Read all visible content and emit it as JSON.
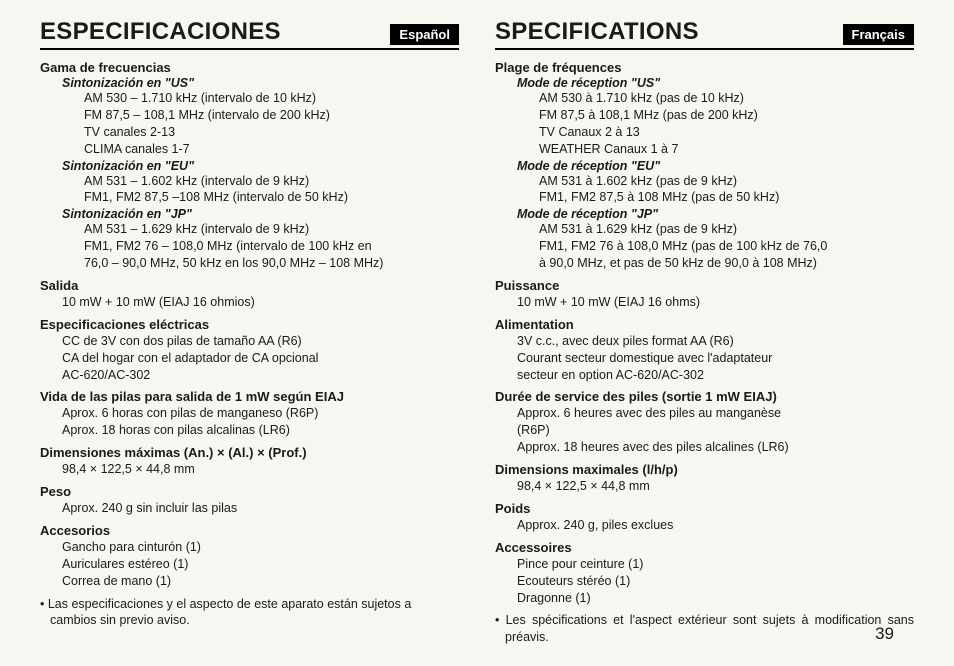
{
  "page_number": "39",
  "left": {
    "title": "ESPECIFICACIONES",
    "lang": "Español",
    "s1": "Gama de frecuencias",
    "s1a": "Sintonización en \"US\"",
    "s1a1": "AM 530 – 1.710 kHz (intervalo de 10 kHz)",
    "s1a2": "FM 87,5 – 108,1 MHz (intervalo de 200 kHz)",
    "s1a3": "TV canales 2-13",
    "s1a4": "CLIMA canales 1-7",
    "s1b": "Sintonización en \"EU\"",
    "s1b1": "AM 531 – 1.602 kHz (intervalo de 9 kHz)",
    "s1b2": "FM1, FM2 87,5 –108 MHz (intervalo de 50 kHz)",
    "s1c": "Sintonización en \"JP\"",
    "s1c1": "AM 531 – 1.629 kHz (intervalo de 9 kHz)",
    "s1c2": "FM1, FM2 76 – 108,0 MHz (intervalo de 100 kHz en",
    "s1c3": "76,0 – 90,0 MHz, 50 kHz en los 90,0 MHz – 108 MHz)",
    "s2": "Salida",
    "s2a": "10 mW + 10 mW (EIAJ 16 ohmios)",
    "s3": "Especificaciones eléctricas",
    "s3a": "CC de 3V con dos pilas de tamaño AA (R6)",
    "s3b": "CA del hogar con el adaptador de CA opcional",
    "s3c": "AC-620/AC-302",
    "s4": "Vida de las pilas para salida de 1 mW según EIAJ",
    "s4a": "Aprox. 6 horas con pilas de manganeso (R6P)",
    "s4b": "Aprox. 18 horas con pilas alcalinas (LR6)",
    "s5": "Dimensiones máximas (An.) × (Al.) × (Prof.)",
    "s5a": "98,4 × 122,5 × 44,8 mm",
    "s6": "Peso",
    "s6a": "Aprox. 240 g sin incluir las pilas",
    "s7": "Accesorios",
    "s7a": "Gancho para cinturón (1)",
    "s7b": "Auriculares estéreo (1)",
    "s7c": "Correa de mano (1)",
    "note": "• Las especificaciones y el aspecto de este aparato están sujetos a cambios sin previo aviso."
  },
  "right": {
    "title": "SPECIFICATIONS",
    "lang": "Français",
    "s1": "Plage de fréquences",
    "s1a": "Mode de réception \"US\"",
    "s1a1": "AM 530 à 1.710 kHz (pas de 10 kHz)",
    "s1a2": "FM 87,5 à 108,1 MHz (pas de 200 kHz)",
    "s1a3": "TV Canaux 2 à 13",
    "s1a4": "WEATHER Canaux 1 à 7",
    "s1b": "Mode de réception \"EU\"",
    "s1b1": "AM 531 à 1.602 kHz (pas de 9 kHz)",
    "s1b2": "FM1, FM2  87,5 à 108 MHz (pas de 50 kHz)",
    "s1c": "Mode de réception \"JP\"",
    "s1c1": "AM  531 à 1.629 kHz (pas de 9 kHz)",
    "s1c2": "FM1, FM2  76 à 108,0 MHz (pas de 100 kHz de 76,0",
    "s1c3": "à 90,0 MHz, et pas de 50 kHz de 90,0 à 108 MHz)",
    "s2": "Puissance",
    "s2a": "10 mW + 10 mW (EIAJ 16 ohms)",
    "s3": "Alimentation",
    "s3a": "3V c.c., avec deux piles format AA (R6)",
    "s3b": "Courant secteur domestique avec l'adaptateur",
    "s3c": "secteur en option AC-620/AC-302",
    "s4": "Durée de service des piles (sortie 1 mW EIAJ)",
    "s4a": "Approx. 6 heures avec des piles au manganèse",
    "s4a2": "(R6P)",
    "s4b": "Approx. 18 heures avec des piles alcalines (LR6)",
    "s5": "Dimensions maximales (l/h/p)",
    "s5a": "98,4 × 122,5 × 44,8 mm",
    "s6": "Poids",
    "s6a": "Approx. 240 g, piles exclues",
    "s7": "Accessoires",
    "s7a": "Pince pour ceinture (1)",
    "s7b": "Ecouteurs stéréo (1)",
    "s7c": "Dragonne (1)",
    "note": "• Les spécifications et l'aspect extérieur sont sujets à modification sans préavis."
  }
}
